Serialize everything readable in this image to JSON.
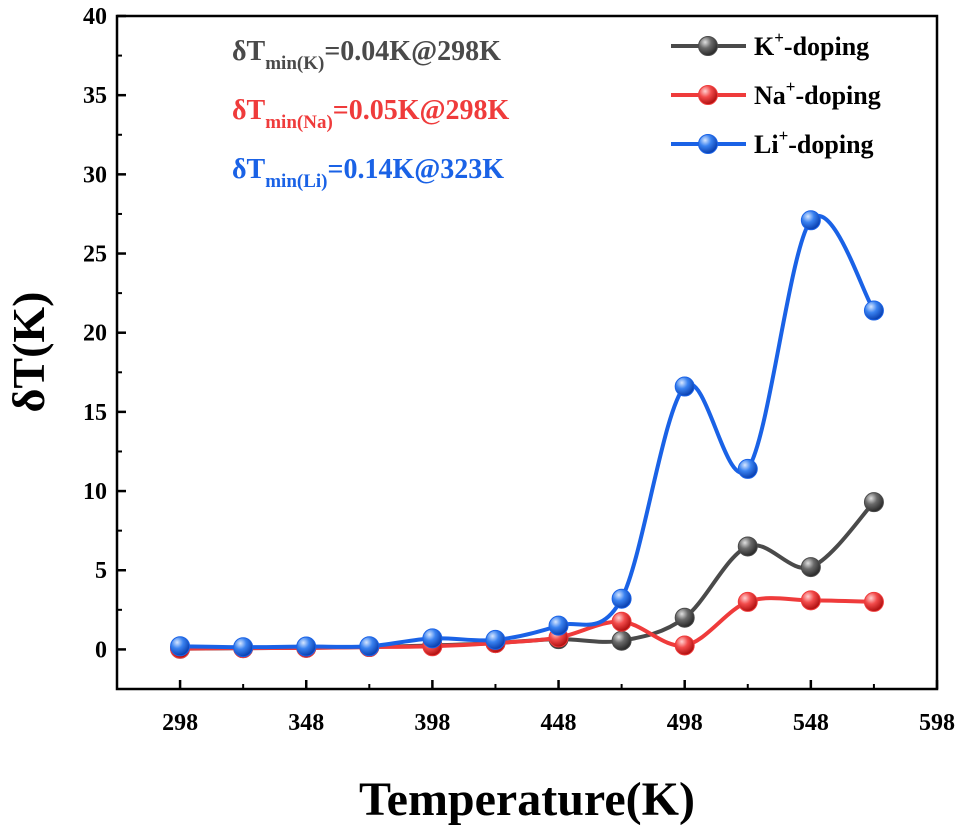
{
  "chart_data": {
    "type": "line",
    "xlabel": "Temperature(K)",
    "ylabel": "δT(K)",
    "xlim": [
      273,
      598
    ],
    "ylim": [
      -2.5,
      40
    ],
    "xticks": [
      298,
      348,
      398,
      448,
      498,
      548,
      598
    ],
    "yticks": [
      0,
      5,
      10,
      15,
      20,
      25,
      30,
      35,
      40
    ],
    "legend_position": "top-right",
    "grid": false,
    "x": [
      298,
      323,
      348,
      373,
      398,
      423,
      448,
      473,
      498,
      523,
      548,
      573
    ],
    "series": [
      {
        "name": "K",
        "name_sup": "+",
        "name_suffix": "-doping",
        "color": "#4a4a4a",
        "values": [
          0.04,
          0.08,
          0.1,
          0.15,
          0.25,
          0.4,
          0.65,
          0.55,
          2.0,
          6.5,
          5.2,
          9.3
        ]
      },
      {
        "name": "Na",
        "name_sup": "+",
        "name_suffix": "-doping",
        "color": "#ef3b3b",
        "values": [
          0.05,
          0.08,
          0.1,
          0.15,
          0.2,
          0.4,
          0.75,
          1.75,
          0.25,
          3.0,
          3.1,
          3.0
        ]
      },
      {
        "name": "Li",
        "name_sup": "+",
        "name_suffix": "-doping",
        "color": "#1a62e6",
        "values": [
          0.2,
          0.14,
          0.18,
          0.2,
          0.7,
          0.6,
          1.5,
          3.2,
          16.6,
          11.4,
          27.1,
          21.4
        ]
      }
    ],
    "annotations": [
      {
        "prefix": "δT",
        "sub": "min(K)",
        "suffix": "=0.04K@298K",
        "color": "#4a4a4a"
      },
      {
        "prefix": "δT",
        "sub": "min(Na)",
        "suffix": "=0.05K@298K",
        "color": "#ef3b3b"
      },
      {
        "prefix": "δT",
        "sub": "min(Li)",
        "suffix": "=0.14K@323K",
        "color": "#1a62e6"
      }
    ]
  }
}
